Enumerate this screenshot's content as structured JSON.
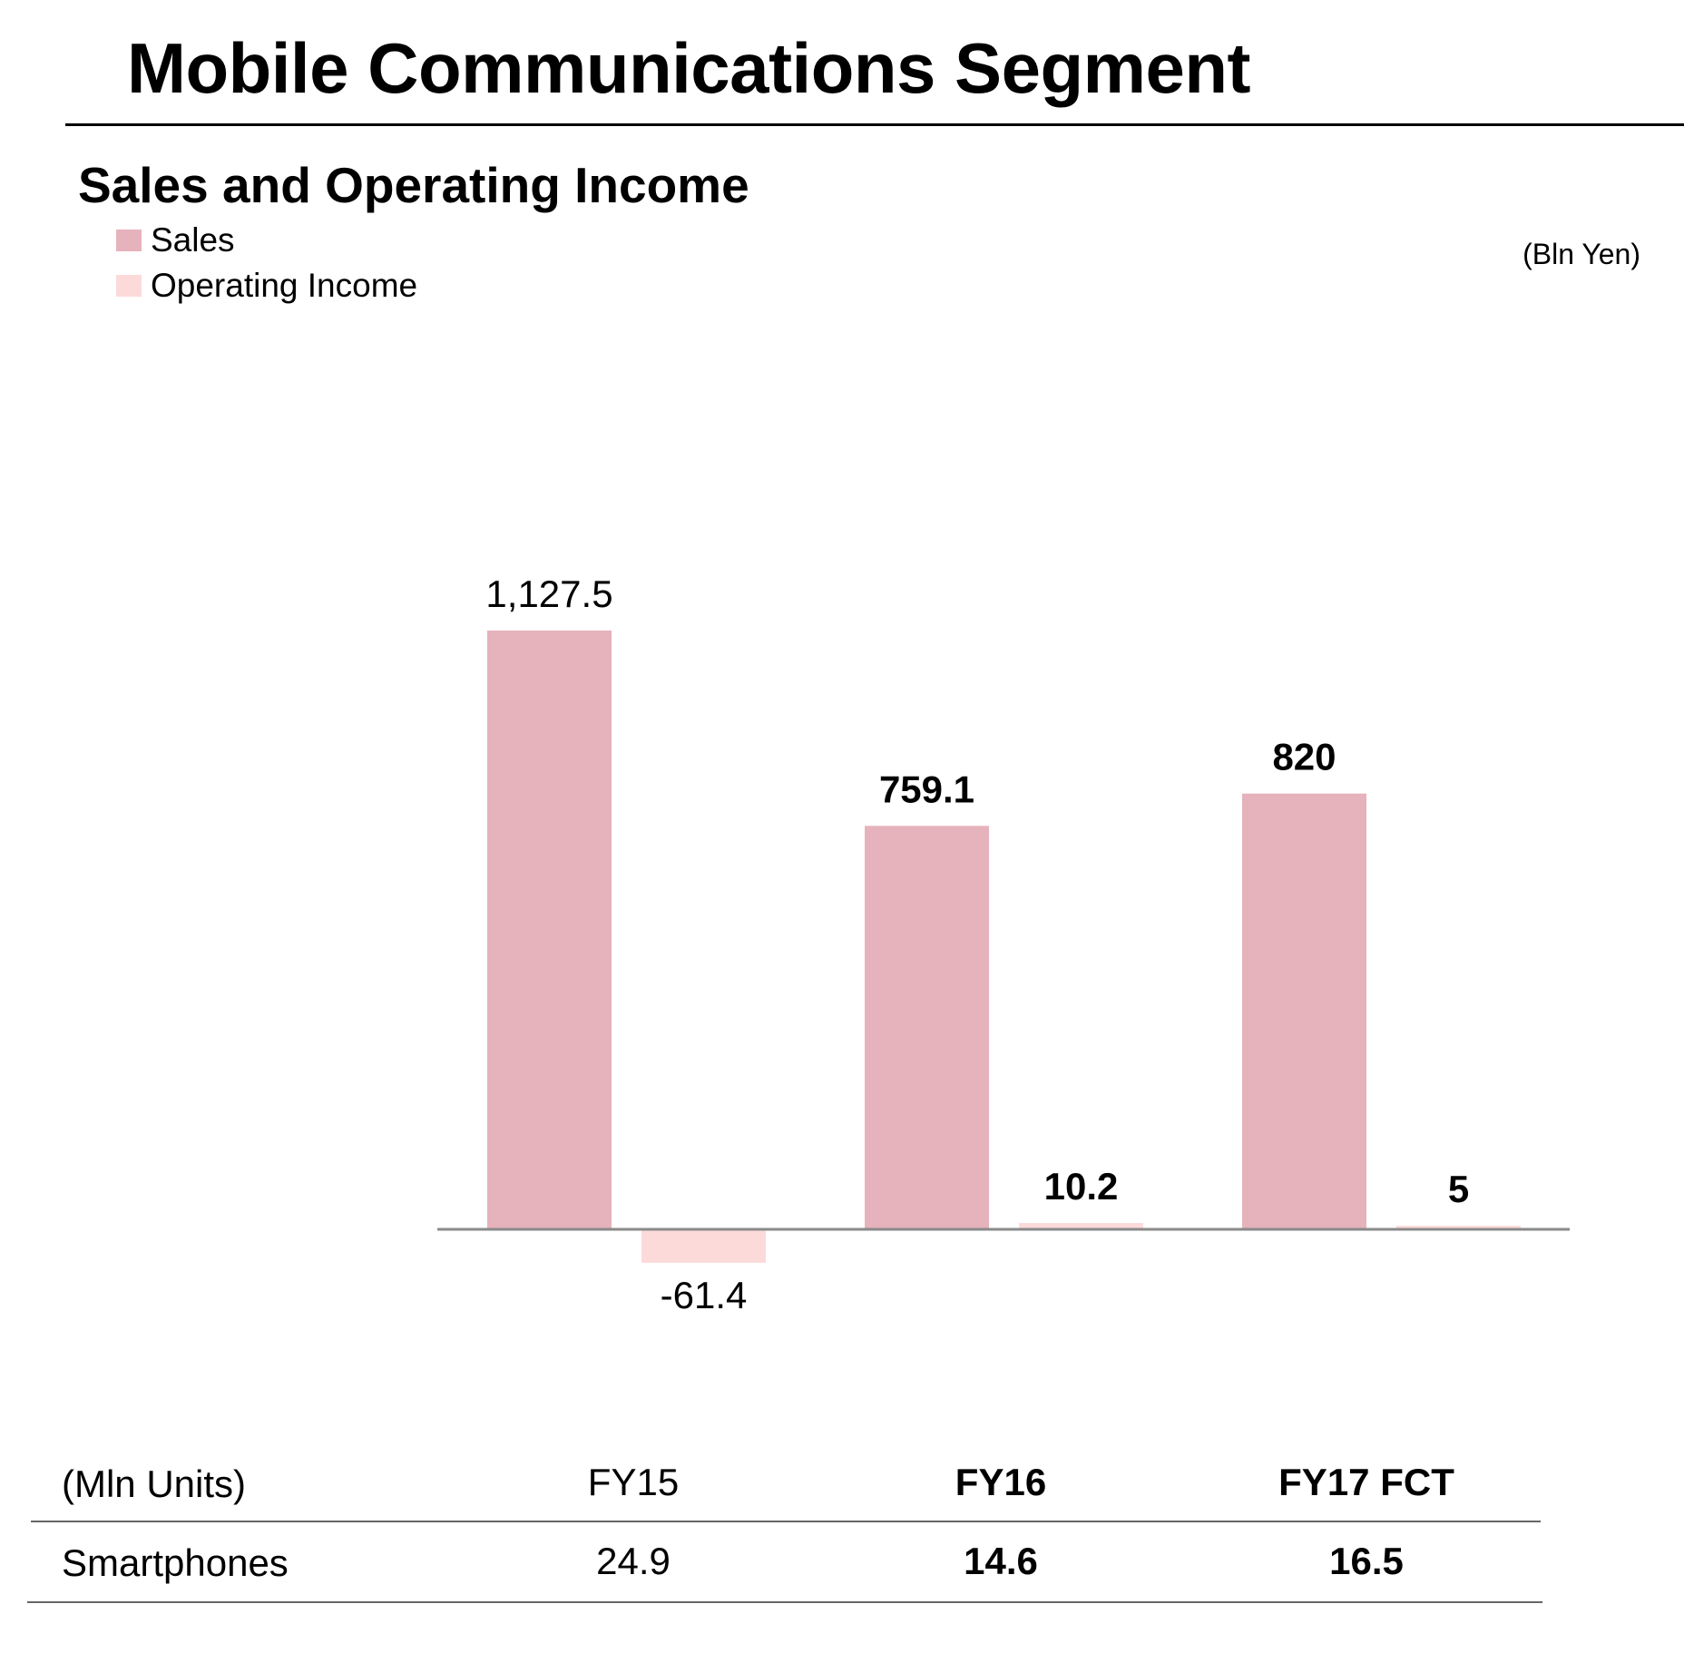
{
  "page": {
    "title": "Mobile Communications Segment"
  },
  "chart_data": {
    "type": "bar",
    "title": "Sales and Operating Income",
    "unit": "(Bln Yen)",
    "categories": [
      "FY15",
      "FY16",
      "FY17 FCT"
    ],
    "series": [
      {
        "name": "Sales",
        "values": [
          1127.5,
          759.1,
          820
        ],
        "labels": [
          "1,127.5",
          "759.1",
          "820"
        ],
        "color": "#e6b2bb"
      },
      {
        "name": "Operating Income",
        "values": [
          -61.4,
          10.2,
          5
        ],
        "labels": [
          "-61.4",
          "10.2",
          "5"
        ],
        "color": "#fcdada"
      }
    ],
    "bold_categories": [
      false,
      true,
      true
    ],
    "ylim": [
      -61.4,
      1127.5
    ],
    "grid": false,
    "legend_position": "top-left"
  },
  "units_table": {
    "header_label": "(Mln Units)",
    "columns": [
      "FY15",
      "FY16",
      "FY17 FCT"
    ],
    "row_label": "Smartphones",
    "values": [
      "24.9",
      "14.6",
      "16.5"
    ],
    "bold_columns": [
      false,
      true,
      true
    ]
  }
}
